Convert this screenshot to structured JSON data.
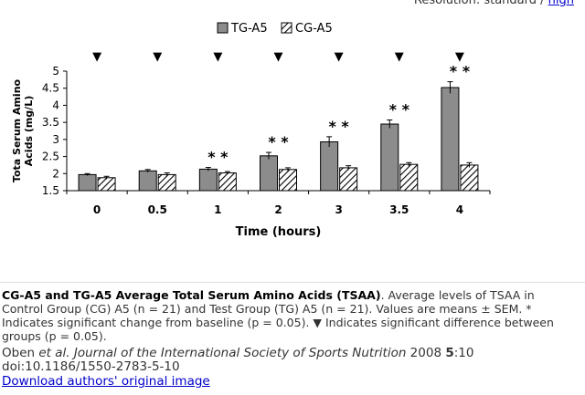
{
  "header": {
    "resolution_text": "Resolution: standard / ",
    "high_link": "high"
  },
  "chart_data": {
    "type": "bar",
    "title": "",
    "xlabel": "Time (hours)",
    "ylabel_line1": "Tota Serum Amino",
    "ylabel_line2": "Acids (mg/L)",
    "ylim": [
      1.5,
      5
    ],
    "yticks": [
      "1.5",
      "2",
      "2.5",
      "3",
      "3.5",
      "4",
      "4.5",
      "5"
    ],
    "categories": [
      "0",
      "0.5",
      "1",
      "2",
      "3",
      "3.5",
      "4"
    ],
    "series": [
      {
        "name": "TG-A5",
        "values": [
          1.97,
          2.08,
          2.13,
          2.52,
          2.93,
          3.45,
          4.52
        ],
        "errors": [
          0.03,
          0.04,
          0.05,
          0.1,
          0.15,
          0.12,
          0.17
        ]
      },
      {
        "name": "CG-A5",
        "values": [
          1.88,
          1.97,
          2.02,
          2.12,
          2.17,
          2.27,
          2.25
        ],
        "errors": [
          0.04,
          0.05,
          0.04,
          0.05,
          0.06,
          0.05,
          0.07
        ]
      }
    ],
    "significance_baseline": [
      false,
      false,
      true,
      true,
      true,
      true,
      true
    ],
    "significance_marker": "* *",
    "between_group_marker": "▼",
    "legend_position": "top-center",
    "colors": {
      "tg": "#8c8c8c",
      "cg_hatch": "#000000"
    }
  },
  "caption": {
    "title": "CG-A5 and TG-A5 Average Total Serum Amino Acids (TSAA)",
    "body": ". Average levels of TSAA in Control Group (CG) A5 (n = 21) and Test Group (TG) A5 (n = 21). Values are means ± SEM. * Indicates significant change from baseline (p = 0.05). ▼ Indicates significant difference between groups (p = 0.05)."
  },
  "citation": {
    "authors": "Oben ",
    "et_al": "et al.",
    "journal": " Journal of the International Society of Sports Nutrition",
    "year": " 2008 ",
    "volume": "5",
    "pages": ":10",
    "doi": "doi:10.1186/1550-2783-5-10"
  },
  "download_link": "Download authors' original image"
}
